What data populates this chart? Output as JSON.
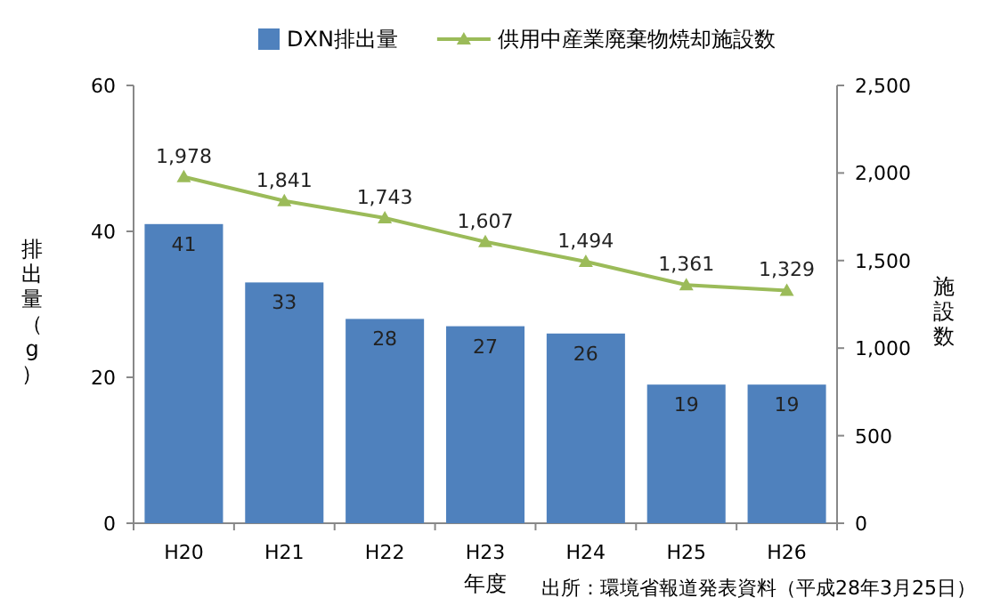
{
  "chart_data": {
    "type": "bar",
    "categories": [
      "H20",
      "H21",
      "H22",
      "H23",
      "H24",
      "H25",
      "H26"
    ],
    "series": [
      {
        "name": "DXN排出量",
        "color": "#4f81bd",
        "values": [
          41,
          33,
          28,
          27,
          26,
          19,
          19
        ]
      },
      {
        "name": "供用中産業廃棄物焼却施設数",
        "type": "line",
        "axis": "y2",
        "color": "#9bbb59",
        "marker": "triangle",
        "values": [
          1978,
          1841,
          1743,
          1607,
          1494,
          1361,
          1329
        ],
        "value_labels": [
          "1,978",
          "1,841",
          "1,743",
          "1,607",
          "1,494",
          "1,361",
          "1,329"
        ]
      }
    ],
    "ylim": [
      0,
      60
    ],
    "yticks": [
      0,
      20,
      40,
      60
    ],
    "y2lim": [
      0,
      2500
    ],
    "y2ticks": [
      0,
      500,
      {
        "value": 1000,
        "label": "1,000"
      },
      {
        "value": 1500,
        "label": "1,500"
      },
      {
        "value": 2000,
        "label": "2,000"
      },
      {
        "value": 2500,
        "label": "2,500"
      }
    ],
    "xlabel": "年度",
    "ylabel": "排出量（g）",
    "y2label": "施設数",
    "annotations": [
      "出所：環境省報道発表資料（平成28年3月25日）"
    ],
    "data_labels": true,
    "legend": "top",
    "grid": false
  }
}
